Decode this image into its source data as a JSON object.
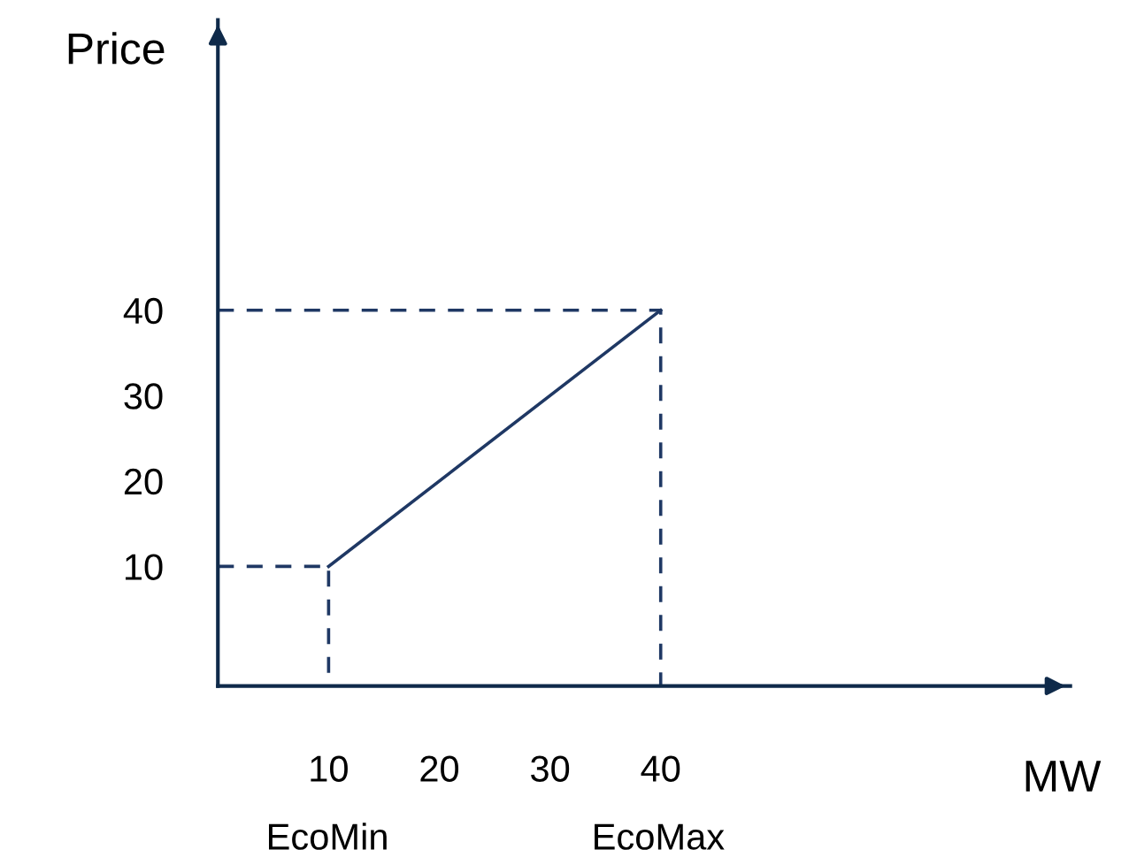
{
  "chart_data": {
    "type": "line",
    "xlabel": "MW",
    "ylabel": "Price",
    "series": [
      {
        "x": [
          10,
          40
        ],
        "values": [
          10,
          40
        ],
        "color": "#1f3864",
        "line_style": "solid"
      },
      {
        "x": [
          0,
          10,
          10
        ],
        "values": [
          10,
          10,
          -4
        ],
        "color": "#1f3864",
        "line_style": "dashed"
      },
      {
        "x": [
          0,
          40,
          40
        ],
        "values": [
          40,
          40,
          -4
        ],
        "color": "#1f3864",
        "line_style": "dashed"
      }
    ],
    "xlim": [
      0,
      77
    ],
    "ylim": [
      -4,
      74
    ],
    "xticks": [
      10,
      20,
      30,
      40
    ],
    "annotations": [
      "EcoMin",
      "EcoMax"
    ],
    "yticks": [
      10,
      20,
      30,
      40
    ],
    "grid": false,
    "legend": false,
    "marker": "none"
  }
}
